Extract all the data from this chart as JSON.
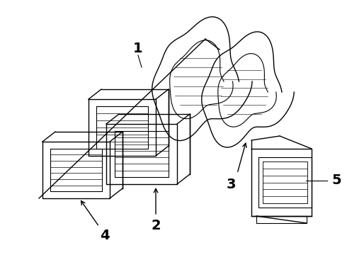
{
  "background_color": "#ffffff",
  "line_color": "#000000",
  "label_fontsize": 14,
  "label_fontweight": "bold",
  "figsize": [
    4.9,
    3.6
  ],
  "dpi": 100
}
